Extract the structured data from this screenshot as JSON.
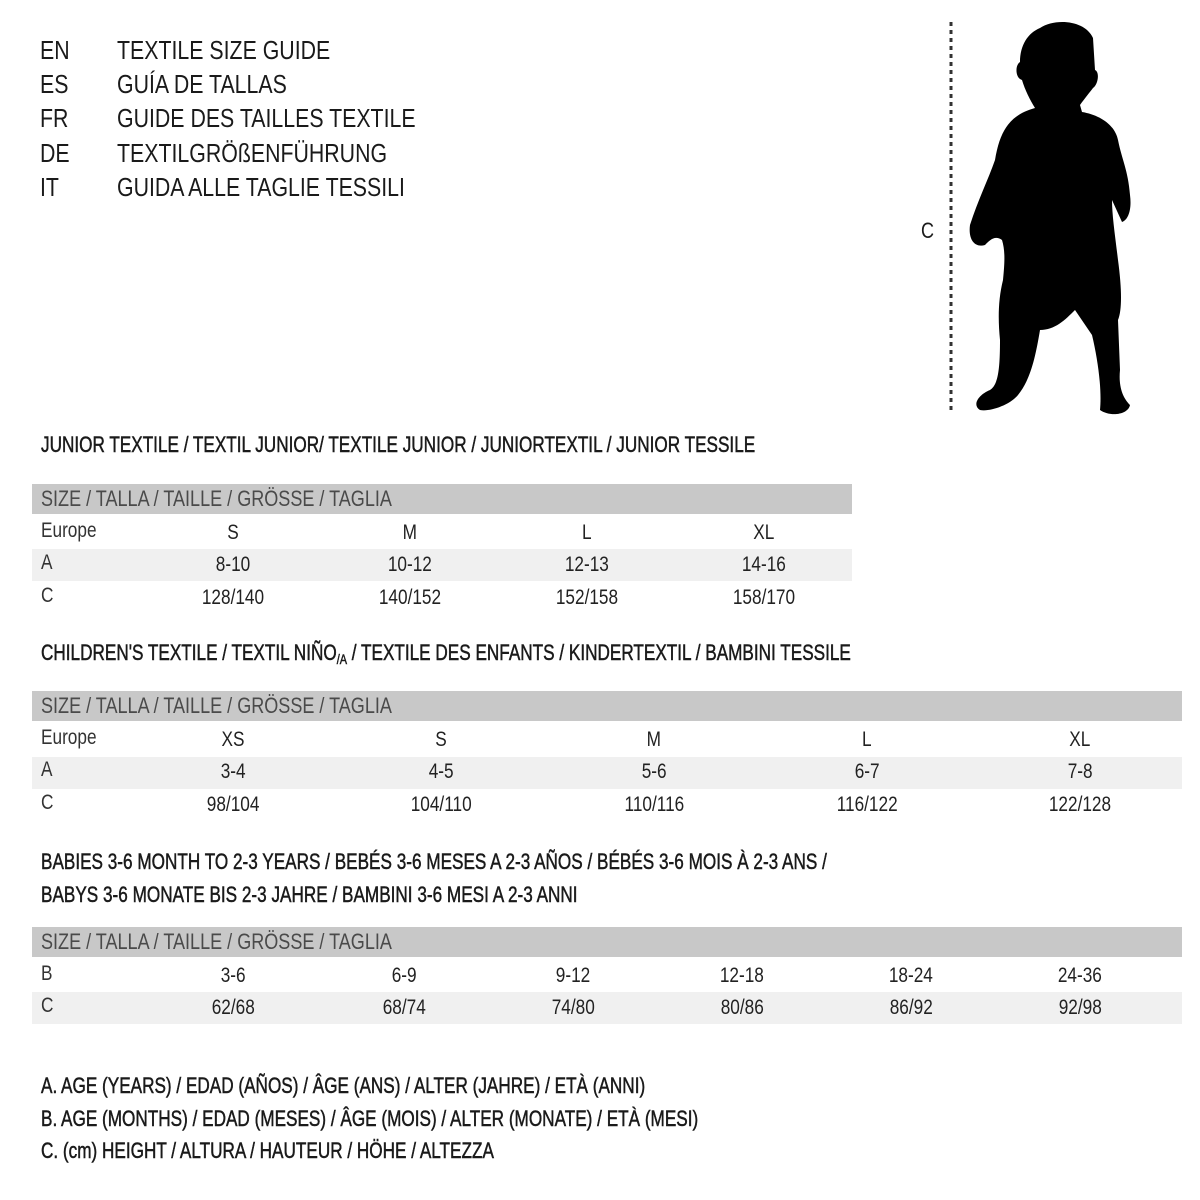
{
  "languages": [
    {
      "code": "EN",
      "text": "TEXTILE SIZE GUIDE"
    },
    {
      "code": "ES",
      "text": "GUÍA DE TALLAS"
    },
    {
      "code": "FR",
      "text": "GUIDE DES TAILLES TEXTILE"
    },
    {
      "code": "DE",
      "text": "TEXTILGRÖßENFÜHRUNG"
    },
    {
      "code": "IT",
      "text": "GUIDA ALLE TAGLIE TESSILI"
    }
  ],
  "figure": {
    "measure_label": "C",
    "icon": "child-silhouette-icon"
  },
  "size_header": "SIZE / TALLA / TAILLE / GRÖSSE / TAGLIA",
  "colors": {
    "header_bar": "#c8c8c8",
    "alt_row": "#f0f0f0"
  },
  "junior": {
    "title": "JUNIOR TEXTILE / TEXTIL JUNIOR/ TEXTILE JUNIOR / JUNIORTEXTIL / JUNIOR TESSILE",
    "rows": [
      {
        "label": "Europe",
        "values": [
          "S",
          "M",
          "L",
          "XL"
        ]
      },
      {
        "label": "A",
        "values": [
          "8-10",
          "10-12",
          "12-13",
          "14-16"
        ]
      },
      {
        "label": "C",
        "values": [
          "128/140",
          "140/152",
          "152/158",
          "158/170"
        ]
      }
    ]
  },
  "children": {
    "title_a": "CHILDREN'S TEXTILE / TEXTIL NIÑO",
    "title_sub": "/A",
    "title_b": " / TEXTILE DES ENFANTS / KINDERTEXTIL / BAMBINI TESSILE",
    "rows": [
      {
        "label": "Europe",
        "values": [
          "XS",
          "S",
          "M",
          "L",
          "XL"
        ]
      },
      {
        "label": "A",
        "values": [
          "3-4",
          "4-5",
          "5-6",
          "6-7",
          "7-8"
        ]
      },
      {
        "label": "C",
        "values": [
          "98/104",
          "104/110",
          "110/116",
          "116/122",
          "122/128"
        ]
      }
    ]
  },
  "babies": {
    "title_line1": "BABIES 3-6 MONTH TO 2-3 YEARS / BEBÉS 3-6 MESES A 2-3 AÑOS / BÉBÉS 3-6 MOIS À 2-3 ANS /",
    "title_line2": "BABYS 3-6 MONATE BIS 2-3 JAHRE / BAMBINI 3-6 MESI A 2-3 ANNI",
    "rows": [
      {
        "label": "B",
        "values": [
          "3-6",
          "6-9",
          "9-12",
          "12-18",
          "18-24",
          "24-36"
        ]
      },
      {
        "label": "C",
        "values": [
          "62/68",
          "68/74",
          "74/80",
          "80/86",
          "86/92",
          "92/98"
        ]
      }
    ]
  },
  "legend": [
    "A. AGE (YEARS) / EDAD (AÑOS) / ÂGE (ANS) / ALTER (JAHRE) / ETÀ (ANNI)",
    "B. AGE (MONTHS) / EDAD (MESES) / ÂGE (MOIS) / ALTER (MONATE) / ETÀ (MESI)",
    "C. (cm) HEIGHT / ALTURA / HAUTEUR / HÖHE / ALTEZZA"
  ]
}
